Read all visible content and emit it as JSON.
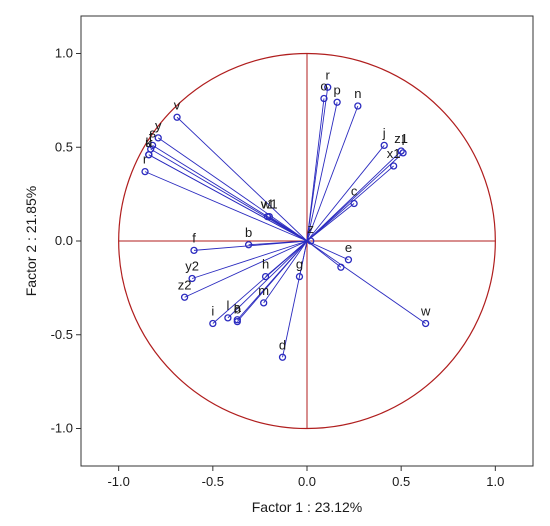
{
  "chart_data": {
    "type": "scatter",
    "title": "",
    "xlabel": "Factor 1 : 23.12%",
    "ylabel": "Factor 2 : 21.85%",
    "xlim": [
      -1.2,
      1.2
    ],
    "ylim": [
      -1.2,
      1.2
    ],
    "xticks": [
      "-1.0",
      "-0.5",
      "0.0",
      "0.5",
      "1.0"
    ],
    "yticks": [
      "1.0",
      "0.5",
      "0.0",
      "-0.5",
      "-1.0"
    ],
    "grid": false,
    "unit_circle": true,
    "vectors_from_origin": true,
    "colors": {
      "vector": "#2b2bbf",
      "circle": "#b01e1e",
      "marker": "#2b2bbf"
    },
    "points": [
      {
        "label": "r",
        "x": 0.11,
        "y": 0.82
      },
      {
        "label": "o",
        "x": 0.09,
        "y": 0.76
      },
      {
        "label": "p",
        "x": 0.16,
        "y": 0.74
      },
      {
        "label": "n",
        "x": 0.27,
        "y": 0.72
      },
      {
        "label": "v",
        "x": -0.69,
        "y": 0.66
      },
      {
        "label": "y",
        "x": -0.79,
        "y": 0.55
      },
      {
        "label": "s",
        "x": -0.82,
        "y": 0.51
      },
      {
        "label": "t",
        "x": -0.83,
        "y": 0.49
      },
      {
        "label": "u",
        "x": -0.84,
        "y": 0.46
      },
      {
        "label": "k",
        "x": -0.84,
        "y": 0.46
      },
      {
        "label": "j",
        "x": 0.41,
        "y": 0.51
      },
      {
        "label": "z1",
        "x": 0.5,
        "y": 0.48
      },
      {
        "label": "l",
        "x": 0.51,
        "y": 0.47
      },
      {
        "label": "x1",
        "x": 0.46,
        "y": 0.4
      },
      {
        "label": "r",
        "x": -0.86,
        "y": 0.37
      },
      {
        "label": "c",
        "x": 0.25,
        "y": 0.2
      },
      {
        "label": "w1",
        "x": -0.2,
        "y": 0.13
      },
      {
        "label": "v1",
        "x": -0.21,
        "y": 0.13
      },
      {
        "label": "b",
        "x": -0.31,
        "y": -0.02
      },
      {
        "label": "f",
        "x": -0.6,
        "y": -0.05
      },
      {
        "label": "z",
        "x": 0.02,
        "y": 0.0
      },
      {
        "label": "e",
        "x": 0.22,
        "y": -0.1
      },
      {
        "label": "g",
        "x": -0.04,
        "y": -0.19
      },
      {
        "label": "h",
        "x": -0.22,
        "y": -0.19
      },
      {
        "label": "y2",
        "x": -0.61,
        "y": -0.2
      },
      {
        "label": "z2",
        "x": -0.65,
        "y": -0.3
      },
      {
        "label": "m",
        "x": -0.23,
        "y": -0.33
      },
      {
        "label": "i",
        "x": -0.5,
        "y": -0.44
      },
      {
        "label": "l",
        "x": -0.42,
        "y": -0.41
      },
      {
        "label": "a",
        "x": -0.37,
        "y": -0.42
      },
      {
        "label": "b",
        "x": -0.37,
        "y": -0.43
      },
      {
        "label": "d",
        "x": -0.13,
        "y": -0.62
      },
      {
        "label": "w",
        "x": 0.63,
        "y": -0.44
      },
      {
        "label": "",
        "x": 0.18,
        "y": -0.14
      }
    ]
  }
}
